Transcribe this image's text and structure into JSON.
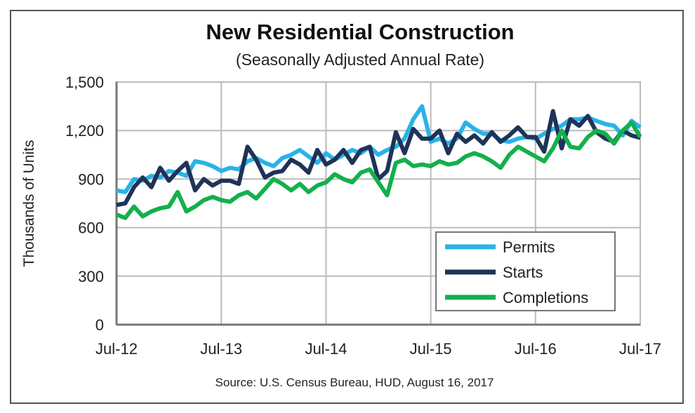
{
  "chart_data": {
    "type": "line",
    "title": "New Residential Construction",
    "subtitle": "(Seasonally Adjusted Annual Rate)",
    "ylabel": "Thousands of Units",
    "xlabel": "",
    "source": "Source:  U.S. Census Bureau, HUD, August 16, 2017",
    "ylim": [
      0,
      1500
    ],
    "yticks": [
      "0",
      "300",
      "600",
      "900",
      "1,200",
      "1,500"
    ],
    "ytick_values": [
      0,
      300,
      600,
      900,
      1200,
      1500
    ],
    "xticks": [
      "Jul-12",
      "Jul-13",
      "Jul-14",
      "Jul-15",
      "Jul-16",
      "Jul-17"
    ],
    "x_start": "Jul-12",
    "x_end": "Jul-17",
    "x_frequency": "monthly",
    "grid": true,
    "legend_placement": "bottom-right",
    "series": [
      {
        "name": "Permits",
        "color": "#29b3e9",
        "values": [
          830,
          820,
          900,
          890,
          920,
          910,
          950,
          940,
          920,
          1010,
          1000,
          980,
          950,
          970,
          960,
          1010,
          1030,
          1000,
          980,
          1030,
          1050,
          1080,
          1040,
          1000,
          1060,
          1020,
          1050,
          1080,
          1060,
          1100,
          1050,
          1080,
          1100,
          1150,
          1270,
          1350,
          1130,
          1150,
          1120,
          1150,
          1250,
          1210,
          1180,
          1180,
          1140,
          1130,
          1150,
          1160,
          1150,
          1180,
          1210,
          1230,
          1270,
          1270,
          1280,
          1260,
          1240,
          1230,
          1170,
          1260,
          1220
        ]
      },
      {
        "name": "Starts",
        "color": "#1f3358",
        "values": [
          740,
          750,
          850,
          910,
          850,
          970,
          890,
          950,
          1000,
          830,
          900,
          860,
          890,
          890,
          870,
          1100,
          1020,
          910,
          940,
          950,
          1020,
          990,
          940,
          1080,
          990,
          1020,
          1080,
          1000,
          1080,
          1100,
          900,
          950,
          1190,
          1060,
          1210,
          1150,
          1150,
          1200,
          1060,
          1180,
          1130,
          1170,
          1120,
          1190,
          1130,
          1170,
          1220,
          1160,
          1160,
          1070,
          1320,
          1090,
          1270,
          1230,
          1290,
          1190,
          1150,
          1130,
          1200,
          1170,
          1155
        ]
      },
      {
        "name": "Completions",
        "color": "#13b04b",
        "values": [
          680,
          660,
          730,
          670,
          700,
          720,
          730,
          820,
          700,
          730,
          770,
          790,
          770,
          760,
          800,
          820,
          780,
          840,
          900,
          870,
          830,
          870,
          820,
          860,
          880,
          930,
          900,
          880,
          940,
          960,
          880,
          800,
          1000,
          1020,
          980,
          990,
          980,
          1010,
          990,
          1000,
          1040,
          1060,
          1040,
          1010,
          970,
          1050,
          1100,
          1070,
          1040,
          1010,
          1090,
          1200,
          1100,
          1090,
          1160,
          1200,
          1180,
          1120,
          1200,
          1250,
          1160
        ]
      }
    ]
  }
}
